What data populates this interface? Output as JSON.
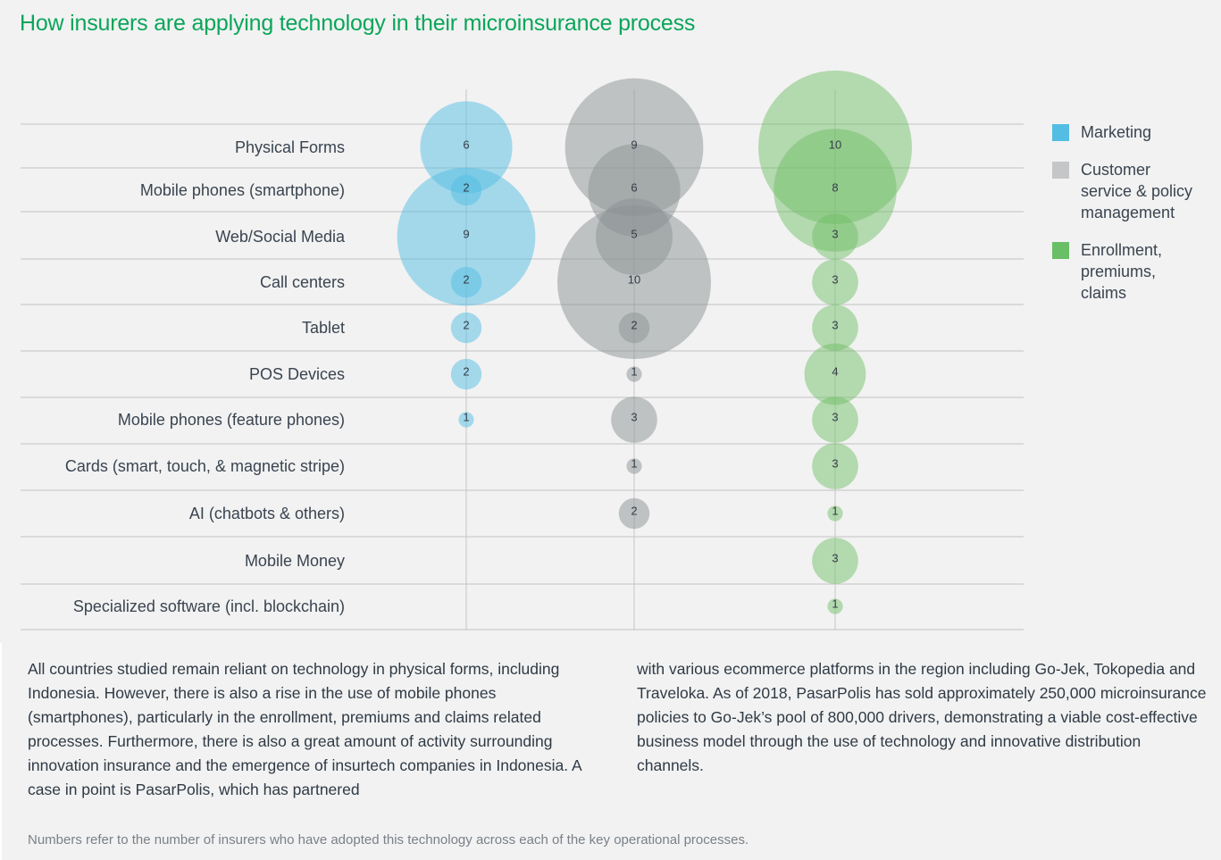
{
  "title": "How insurers are applying technology in their microinsurance process",
  "legend": [
    {
      "label": "Marketing",
      "color": "#54bde4"
    },
    {
      "label": "Customer service & policy management",
      "color": "#c4c6c8"
    },
    {
      "label": "Enrollment, premiums, claims",
      "color": "#68bf65"
    }
  ],
  "chart_data": {
    "type": "bubble",
    "title": "How insurers are applying technology in their microinsurance process",
    "categories": [
      "Physical Forms",
      "Mobile phones (smartphone)",
      "Web/Social Media",
      "Call centers",
      "Tablet",
      "POS Devices",
      "Mobile phones (feature phones)",
      "Cards (smart, touch, & magnetic stripe)",
      "AI (chatbots & others)",
      "Mobile Money",
      "Specialized software (incl. blockchain)"
    ],
    "series": [
      {
        "name": "Marketing",
        "color": "#54bde4",
        "values": [
          6,
          2,
          9,
          2,
          2,
          2,
          1,
          null,
          null,
          null,
          null
        ]
      },
      {
        "name": "Customer service & policy management",
        "color": "#8e9294",
        "values": [
          9,
          6,
          5,
          10,
          2,
          1,
          3,
          1,
          2,
          null,
          null
        ]
      },
      {
        "name": "Enrollment, premiums, claims",
        "color": "#68bf65",
        "values": [
          10,
          8,
          3,
          3,
          3,
          4,
          3,
          3,
          1,
          3,
          1
        ]
      }
    ],
    "legend_position": "right",
    "grid": true
  },
  "body_text": {
    "col1": "All countries studied remain reliant on technology in physical forms, including Indonesia. However, there is also a rise in the use of mobile phones (smartphones), particularly in the enrollment, premiums and claims related processes. Furthermore, there is also a great amount of activity surrounding innovation insurance and the emergence of insurtech companies in Indonesia. A case in point is PasarPolis, which has partnered",
    "col2": "with various ecommerce platforms in the region including Go-Jek, Tokopedia and Traveloka. As of 2018, PasarPolis has sold approximately 250,000 microinsurance policies to Go-Jek’s pool of 800,000 drivers, demonstrating a viable cost-effective business model through the use of technology and innovative distribution channels."
  },
  "footnote": "Numbers refer to the number of insurers who have adopted this technology across each of the key operational processes."
}
